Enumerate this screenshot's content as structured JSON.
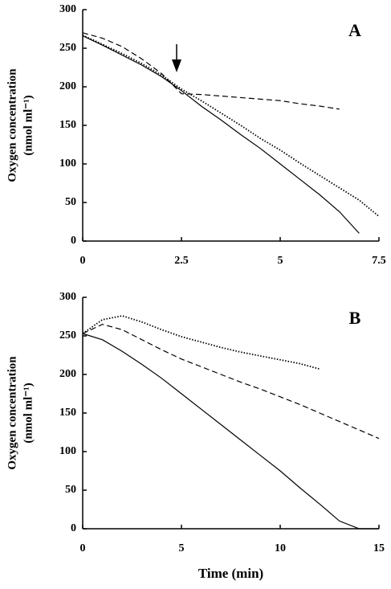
{
  "chart_data": [
    {
      "type": "line",
      "label": "A",
      "ylabel": [
        "Oxygen concentration",
        "(nmol ml⁻¹)"
      ],
      "x": [
        0,
        0.5,
        1,
        1.5,
        2,
        2.5,
        3,
        3.5,
        4,
        4.5,
        5,
        5.5,
        6,
        6.5,
        7,
        7.5
      ],
      "series": [
        {
          "color": "#000000",
          "style": "solid",
          "values": [
            266,
            254,
            241,
            228,
            213,
            195,
            175,
            157,
            138,
            120,
            100,
            80,
            60,
            38,
            10,
            null
          ]
        },
        {
          "color": "#000000",
          "style": "dotted",
          "values": [
            267,
            255,
            243,
            230,
            215,
            197,
            182,
            166,
            150,
            133,
            118,
            101,
            85,
            69,
            53,
            32
          ]
        },
        {
          "color": "#000000",
          "style": "dashed",
          "values": [
            270,
            263,
            252,
            236,
            217,
            191,
            190,
            188,
            186,
            184,
            182,
            178,
            175,
            171,
            null,
            null
          ]
        }
      ],
      "xlim": [
        0,
        7.5
      ],
      "xticks": [
        0,
        2.5,
        5,
        7.5
      ],
      "ylim": [
        0,
        300
      ],
      "yticks": [
        0,
        50,
        100,
        150,
        200,
        250,
        300
      ]
    },
    {
      "type": "line",
      "label": "B",
      "ylabel": [
        "Oxygen concentration",
        "(nmol ml⁻¹)"
      ],
      "xlabel": "Time (min)",
      "x": [
        0,
        1,
        2,
        3,
        4,
        5,
        6,
        7,
        8,
        9,
        10,
        11,
        12,
        13,
        14,
        15
      ],
      "series": [
        {
          "color": "#000000",
          "style": "solid",
          "values": [
            253,
            245,
            230,
            213,
            195,
            175,
            155,
            135,
            115,
            95,
            75,
            53,
            32,
            10,
            0,
            0
          ]
        },
        {
          "color": "#000000",
          "style": "dotted",
          "values": [
            253,
            271,
            276,
            268,
            258,
            249,
            242,
            235,
            229,
            224,
            219,
            214,
            207,
            null,
            null,
            null
          ]
        },
        {
          "color": "#000000",
          "style": "dashed",
          "values": [
            253,
            265,
            258,
            245,
            232,
            220,
            210,
            200,
            190,
            181,
            171,
            161,
            150,
            139,
            128,
            117
          ]
        }
      ],
      "xlim": [
        0,
        15
      ],
      "xticks": [
        0,
        5,
        10,
        15
      ],
      "ylim": [
        0,
        300
      ],
      "yticks": [
        0,
        50,
        100,
        150,
        200,
        250,
        300
      ]
    }
  ]
}
